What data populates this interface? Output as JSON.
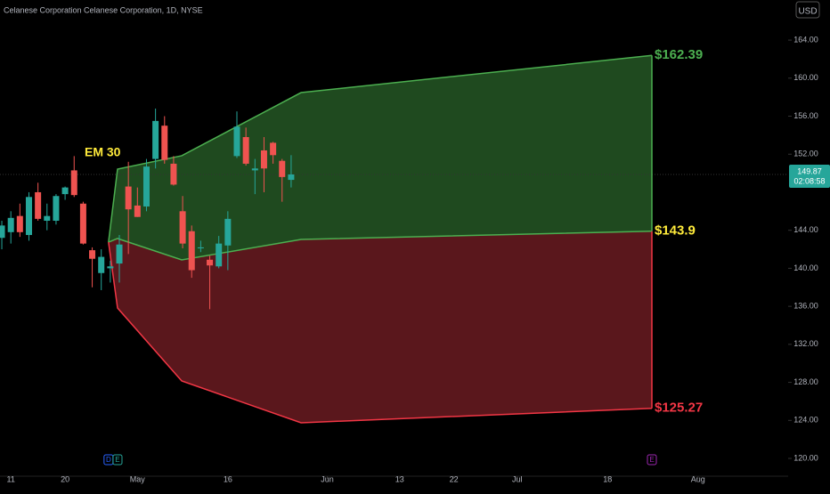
{
  "chart_data": {
    "type": "candlestick",
    "title": "Celanese Corporation Celanese Corporation, 1D, NYSE",
    "currency": "USD",
    "annotation": "EM 30",
    "x": [
      0,
      1,
      2,
      3,
      4,
      5,
      6,
      7,
      8,
      9,
      10,
      11,
      12,
      13,
      14,
      15,
      16,
      17,
      18,
      19,
      20,
      21,
      22,
      23,
      24,
      25,
      26,
      27,
      28,
      29,
      30,
      31,
      32
    ],
    "open": [
      143.2,
      143.8,
      145.5,
      143.5,
      148.0,
      145.0,
      145.0,
      147.8,
      150.3,
      146.8,
      141.9,
      139.5,
      140.0,
      140.5,
      148.6,
      146.6,
      146.5,
      151.5,
      155.0,
      151.0,
      146.0,
      143.9,
      142.1,
      140.9,
      140.2,
      142.4,
      151.8,
      153.8,
      150.3,
      152.4,
      153.2,
      151.3,
      149.3
    ],
    "high": [
      145.0,
      146.0,
      146.8,
      148.0,
      149.0,
      146.8,
      147.8,
      148.6,
      151.8,
      147.0,
      142.2,
      142.0,
      140.8,
      143.5,
      151.2,
      148.5,
      151.5,
      156.8,
      156.0,
      151.8,
      147.6,
      144.5,
      142.9,
      141.3,
      143.4,
      146.0,
      156.5,
      154.8,
      151.5,
      153.8,
      153.3,
      151.5,
      151.9
    ],
    "low": [
      142.0,
      142.6,
      143.3,
      142.9,
      145.0,
      144.0,
      144.6,
      147.2,
      147.5,
      142.5,
      138.0,
      137.7,
      138.5,
      138.5,
      141.5,
      145.4,
      146.0,
      150.5,
      151.0,
      148.7,
      142.1,
      139.0,
      141.7,
      135.7,
      140.0,
      139.8,
      151.6,
      150.8,
      147.8,
      148.0,
      151.0,
      147.0,
      148.5
    ],
    "close": [
      144.5,
      145.3,
      143.8,
      147.5,
      145.2,
      145.5,
      147.6,
      148.5,
      147.7,
      142.6,
      141.0,
      141.2,
      140.2,
      142.5,
      146.2,
      145.4,
      150.7,
      155.5,
      151.4,
      148.8,
      142.6,
      139.8,
      142.2,
      140.3,
      142.6,
      145.2,
      154.9,
      151.0,
      150.5,
      150.5,
      151.9,
      149.6,
      149.87
    ],
    "up_color": "#26a69a",
    "down_color": "#ef5350",
    "xlim": [
      -0.2,
      91.6
    ],
    "xticks": [
      {
        "value": 1,
        "label": "11"
      },
      {
        "value": 7,
        "label": "20"
      },
      {
        "value": 15,
        "label": "May"
      },
      {
        "value": 25,
        "label": "16"
      },
      {
        "value": 36,
        "label": "Jun"
      },
      {
        "value": 44,
        "label": "13"
      },
      {
        "value": 50,
        "label": "22"
      },
      {
        "value": 57,
        "label": "Jul"
      },
      {
        "value": 67,
        "label": "18"
      },
      {
        "value": 77,
        "label": "Aug"
      }
    ],
    "ylim": [
      118.13,
      168.22
    ],
    "yticks": [
      {
        "value": 120,
        "label": "120.00"
      },
      {
        "value": 124,
        "label": "124.00"
      },
      {
        "value": 128,
        "label": "128.00"
      },
      {
        "value": 132,
        "label": "132.00"
      },
      {
        "value": 136,
        "label": "136.00"
      },
      {
        "value": 140,
        "label": "140.00"
      },
      {
        "value": 144,
        "label": "144.00"
      },
      {
        "value": 152,
        "label": "152.00"
      },
      {
        "value": 156,
        "label": "156.00"
      },
      {
        "value": 160,
        "label": "160.00"
      },
      {
        "value": 164,
        "label": "164.00"
      }
    ],
    "last_price": {
      "value": 149.87,
      "label": "149.87",
      "countdown": "02:08:58",
      "color": "#26a69a"
    },
    "cone": {
      "x": [
        11.8,
        12.8,
        19.9,
        33.1,
        71.9
      ],
      "series": [
        {
          "name": "upper",
          "color": "#4caf50",
          "label_color": "#4caf50",
          "values": [
            142.75,
            150.43,
            151.84,
            158.48,
            162.39
          ],
          "end_label": "$162.39"
        },
        {
          "name": "middle",
          "color": "#4caf50",
          "label_color": "#ffeb3b",
          "values": [
            142.75,
            143.13,
            140.88,
            143.03,
            143.9
          ],
          "end_label": "$143.9"
        },
        {
          "name": "lower",
          "color": "#f23645",
          "label_color": "#f23645",
          "values": [
            142.75,
            135.82,
            128.15,
            123.75,
            125.27
          ],
          "end_label": "$125.27"
        }
      ],
      "upper_fill": "#1f4a1f",
      "lower_fill": "#5a171c"
    },
    "events": [
      {
        "x": 11.8,
        "label": "D",
        "color": "#2962ff"
      },
      {
        "x": 12.8,
        "label": "E",
        "color": "#26a69a"
      },
      {
        "x": 71.9,
        "label": "E",
        "color": "#9c27b0"
      }
    ]
  }
}
